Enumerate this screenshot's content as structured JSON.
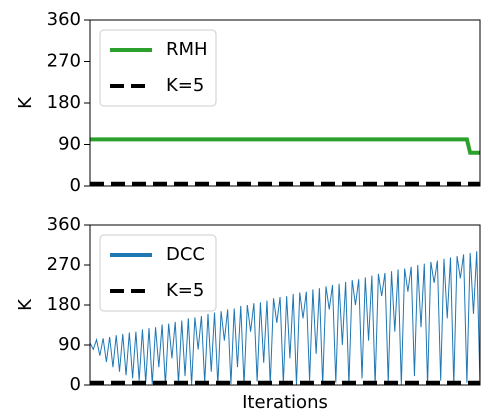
{
  "chart_data": [
    {
      "type": "line",
      "ylabel": "K",
      "ylim": [
        0,
        360
      ],
      "yticks": [
        0,
        90,
        180,
        270,
        360
      ],
      "legend": "upper left",
      "series": [
        {
          "name": "RMH",
          "color": "#2ca02c",
          "linestyle": "solid",
          "values": [
            101,
            101,
            101,
            101,
            101,
            101,
            101,
            101,
            101,
            101,
            101,
            101,
            101,
            101,
            101,
            101,
            101,
            101,
            101,
            101,
            101,
            101,
            101,
            101,
            101,
            101,
            101,
            101,
            101,
            101,
            101,
            101,
            101,
            101,
            101,
            101,
            101,
            101,
            101,
            101,
            101,
            101,
            101,
            101,
            101,
            101,
            101,
            101,
            101,
            101,
            101,
            101,
            101,
            101,
            101,
            101,
            101,
            101,
            101,
            101,
            101,
            101,
            101,
            101,
            101,
            101,
            101,
            101,
            101,
            101,
            101,
            101,
            101,
            101,
            101,
            101,
            101,
            101,
            101,
            101,
            101,
            101,
            101,
            101,
            101,
            101,
            101,
            101,
            101,
            101,
            101,
            101,
            101,
            101,
            101,
            101,
            101,
            101,
            101,
            101,
            101,
            101,
            101,
            101,
            101,
            101,
            101,
            101,
            101,
            101,
            101,
            101,
            101,
            101,
            101,
            101,
            72,
            72,
            72,
            72
          ]
        },
        {
          "name": "K=5",
          "color": "#000000",
          "linestyle": "dashed",
          "values": [
            5,
            5
          ]
        }
      ]
    },
    {
      "type": "line",
      "ylabel": "K",
      "xlabel": "Iterations",
      "ylim": [
        0,
        360
      ],
      "yticks": [
        0,
        90,
        180,
        270,
        360
      ],
      "legend": "upper left",
      "series": [
        {
          "name": "DCC",
          "color": "#1f77b4",
          "linestyle": "solid",
          "values": [
            95,
            80,
            102,
            66,
            105,
            52,
            108,
            40,
            112,
            30,
            115,
            22,
            118,
            15,
            120,
            10,
            125,
            5,
            128,
            2,
            130,
            40,
            136,
            0,
            138,
            60,
            142,
            3,
            145,
            20,
            150,
            0,
            152,
            80,
            155,
            5,
            160,
            30,
            163,
            0,
            166,
            100,
            170,
            2,
            172,
            40,
            178,
            0,
            180,
            120,
            184,
            8,
            186,
            50,
            190,
            0,
            195,
            140,
            198,
            3,
            200,
            60,
            205,
            0,
            208,
            150,
            210,
            10,
            215,
            70,
            218,
            0,
            222,
            170,
            225,
            5,
            228,
            90,
            232,
            0,
            236,
            180,
            238,
            15,
            242,
            100,
            246,
            0,
            250,
            200,
            252,
            5,
            256,
            120,
            260,
            0,
            262,
            210,
            266,
            20,
            270,
            130,
            273,
            0,
            277,
            230,
            280,
            10,
            284,
            150,
            287,
            0,
            290,
            240,
            294,
            5,
            297,
            160,
            301,
            0
          ]
        },
        {
          "name": "K=5",
          "color": "#000000",
          "linestyle": "dashed",
          "values": [
            5,
            5
          ]
        }
      ]
    }
  ]
}
